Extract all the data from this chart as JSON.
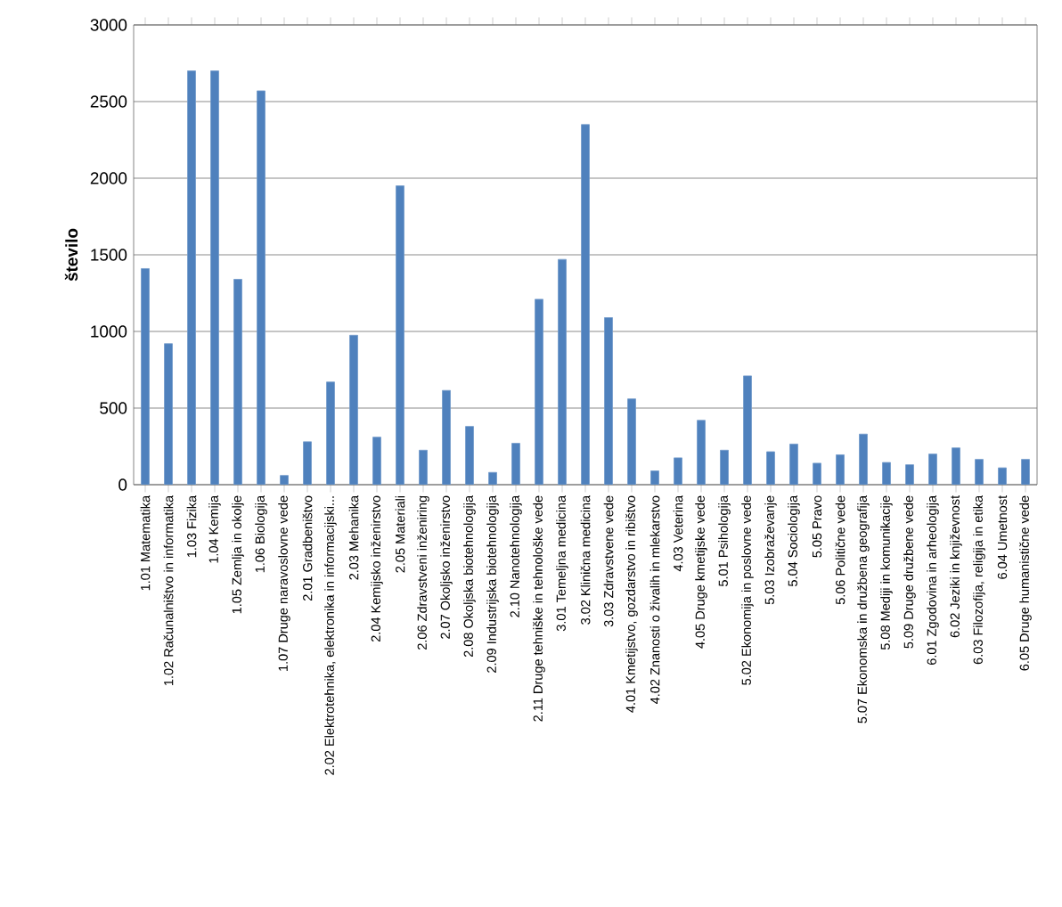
{
  "chart_data": {
    "type": "bar",
    "ylabel": "število",
    "color": "#4f81bd",
    "grid": "y",
    "ylim": [
      0,
      3000
    ],
    "yticks": [
      0,
      500,
      1000,
      1500,
      2000,
      2500,
      3000
    ],
    "categories": [
      "1.01 Matematika",
      "1.02 Računalništvo in informatika",
      "1.03 Fizika",
      "1.04 Kemija",
      "1.05 Zemlja in okolje",
      "1.06 Biologija",
      "1.07 Druge naravoslovne vede",
      "2.01 Gradbeništvo",
      "2.02 Elektrotehnika, elektronika in informacijski...",
      "2.03 Mehanika",
      "2.04 Kemijsko inženirstvo",
      "2.05 Materiali",
      "2.06 Zdravstveni inženiring",
      "2.07 Okoljsko inženirstvo",
      "2.08 Okoljska biotehnologija",
      "2.09 Industrijska biotehnologija",
      "2.10 Nanotehnologija",
      "2.11 Druge tehniške in tehnološke vede",
      "3.01 Temeljna medicina",
      "3.02 Klinična medicina",
      "3.03 Zdravstvene vede",
      "4.01 Kmetijstvo, gozdarstvo in ribištvo",
      "4.02 Znanosti o živalih in mlekarstvo",
      "4.03 Veterina",
      "4.05 Druge kmetijske vede",
      "5.01 Psihologija",
      "5.02 Ekonomija in poslovne vede",
      "5.03 Izobraževanje",
      "5.04 Sociologija",
      "5.05 Pravo",
      "5.06 Politične vede",
      "5.07 Ekonomska in družbena geografija",
      "5.08 Mediji in komunikacije",
      "5.09 Druge družbene vede",
      "6.01 Zgodovina in arheologija",
      "6.02 Jeziki in književnost",
      "6.03 Filozofija, religija in etika",
      "6.04 Umetnost",
      "6.05 Druge humanistične vede"
    ],
    "values": [
      1410,
      920,
      2700,
      2700,
      1340,
      2570,
      60,
      280,
      670,
      975,
      310,
      1950,
      225,
      615,
      380,
      80,
      270,
      1210,
      1470,
      2350,
      1090,
      560,
      90,
      175,
      420,
      225,
      710,
      215,
      265,
      140,
      195,
      330,
      145,
      130,
      200,
      240,
      165,
      110,
      165
    ]
  }
}
